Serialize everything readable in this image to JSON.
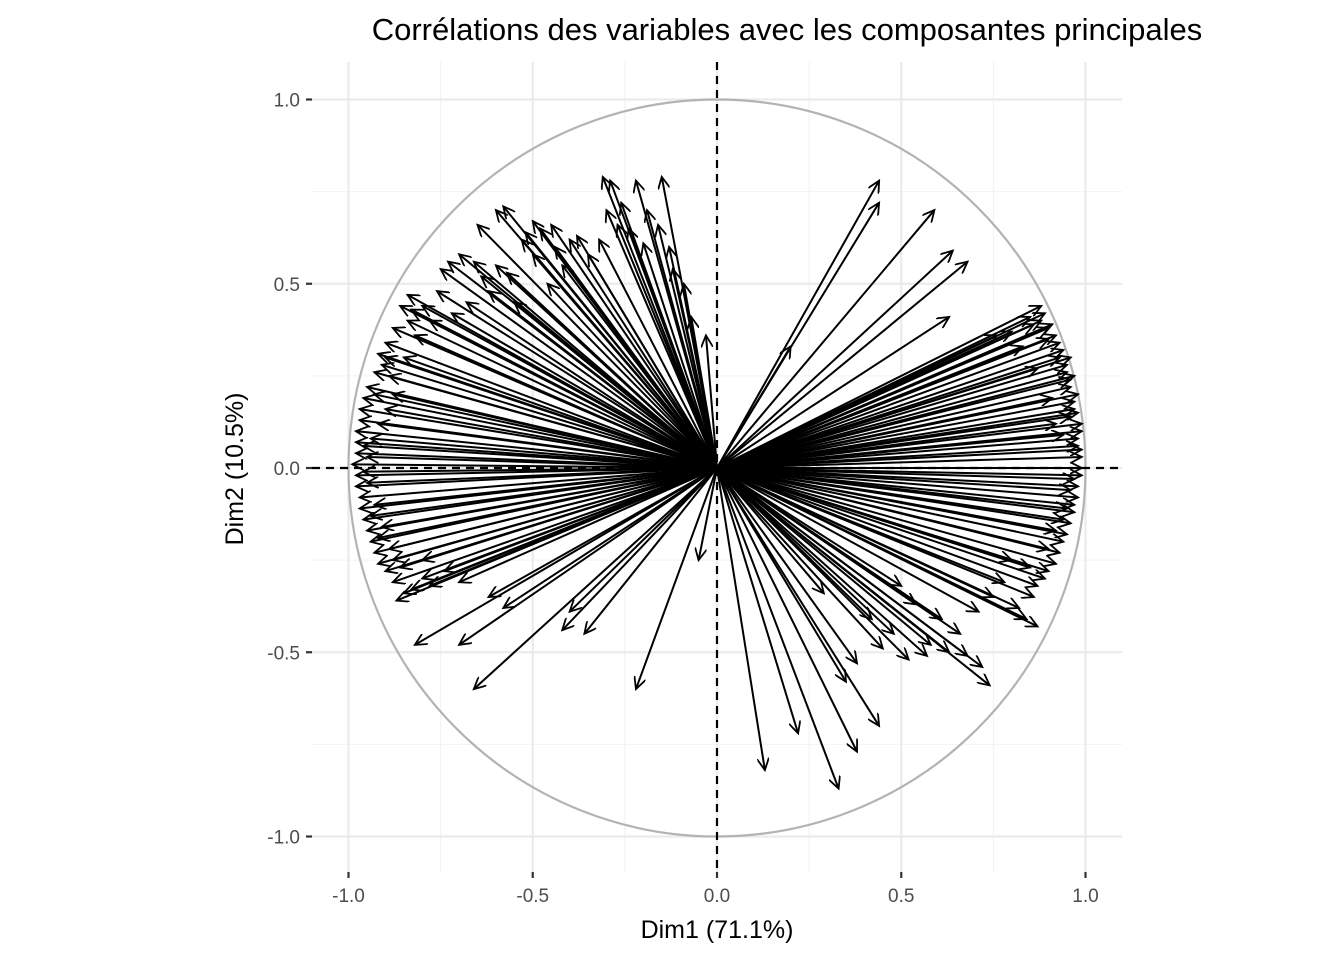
{
  "chart_data": {
    "type": "scatter",
    "subtype": "pca-variable-correlation-circle",
    "title": "Corrélations des variables avec les composantes principales",
    "xlabel": "Dim1 (71.1%)",
    "ylabel": "Dim2 (10.5%)",
    "xlim": [
      -1.0,
      1.0
    ],
    "ylim": [
      -1.0,
      1.0
    ],
    "x_ticks": [
      "-1.0",
      "-0.5",
      "0.0",
      "0.5",
      "1.0"
    ],
    "y_ticks": [
      "1.0",
      "0.5",
      "0.0",
      "-0.5",
      "-1.0"
    ],
    "grid": true,
    "unit_circle": true,
    "reference_lines": {
      "x": 0.0,
      "y": 0.0,
      "style": "dashed"
    },
    "arrow_color": "#000000",
    "circle_color": "#b3b3b3",
    "vectors": [
      [
        0.44,
        0.78
      ],
      [
        0.44,
        0.72
      ],
      [
        0.59,
        0.7
      ],
      [
        0.64,
        0.59
      ],
      [
        0.68,
        0.56
      ],
      [
        0.63,
        0.41
      ],
      [
        0.2,
        0.33
      ],
      [
        0.88,
        0.44
      ],
      [
        0.85,
        0.41
      ],
      [
        0.86,
        0.39
      ],
      [
        0.89,
        0.42
      ],
      [
        0.9,
        0.38
      ],
      [
        0.92,
        0.36
      ],
      [
        0.94,
        0.32
      ],
      [
        0.96,
        0.3
      ],
      [
        0.93,
        0.34
      ],
      [
        0.88,
        0.4
      ],
      [
        0.91,
        0.39
      ],
      [
        0.95,
        0.28
      ],
      [
        0.97,
        0.25
      ],
      [
        0.96,
        0.22
      ],
      [
        0.98,
        0.2
      ],
      [
        0.97,
        0.18
      ],
      [
        0.98,
        0.15
      ],
      [
        0.99,
        0.12
      ],
      [
        0.99,
        0.1
      ],
      [
        0.98,
        0.08
      ],
      [
        0.99,
        0.05
      ],
      [
        0.99,
        0.03
      ],
      [
        0.99,
        0.0
      ],
      [
        0.99,
        -0.02
      ],
      [
        0.98,
        -0.05
      ],
      [
        0.98,
        -0.08
      ],
      [
        0.97,
        -0.1
      ],
      [
        0.97,
        -0.12
      ],
      [
        0.96,
        -0.15
      ],
      [
        0.95,
        -0.18
      ],
      [
        0.94,
        -0.2
      ],
      [
        0.93,
        -0.23
      ],
      [
        0.92,
        -0.26
      ],
      [
        0.9,
        -0.28
      ],
      [
        0.89,
        -0.3
      ],
      [
        0.87,
        -0.32
      ],
      [
        0.86,
        -0.35
      ],
      [
        0.82,
        -0.38
      ],
      [
        0.87,
        -0.43
      ],
      [
        0.84,
        -0.41
      ],
      [
        0.75,
        -0.35
      ],
      [
        0.71,
        -0.39
      ],
      [
        0.68,
        -0.51
      ],
      [
        0.74,
        -0.59
      ],
      [
        0.72,
        -0.54
      ],
      [
        0.66,
        -0.45
      ],
      [
        0.61,
        -0.41
      ],
      [
        0.54,
        -0.37
      ],
      [
        0.5,
        -0.32
      ],
      [
        0.52,
        -0.52
      ],
      [
        0.57,
        -0.51
      ],
      [
        0.45,
        -0.49
      ],
      [
        0.38,
        -0.53
      ],
      [
        0.35,
        -0.58
      ],
      [
        0.44,
        -0.7
      ],
      [
        0.38,
        -0.77
      ],
      [
        0.33,
        -0.87
      ],
      [
        0.22,
        -0.72
      ],
      [
        0.13,
        -0.82
      ],
      [
        0.29,
        -0.34
      ],
      [
        0.95,
        0.26
      ],
      [
        0.96,
        0.24
      ],
      [
        0.97,
        0.16
      ],
      [
        0.93,
        0.3
      ],
      [
        0.9,
        0.35
      ],
      [
        0.98,
        0.06
      ],
      [
        0.97,
        -0.03
      ],
      [
        0.96,
        -0.06
      ],
      [
        0.95,
        -0.11
      ],
      [
        0.94,
        -0.14
      ],
      [
        0.92,
        -0.17
      ],
      [
        0.9,
        -0.22
      ],
      [
        0.85,
        -0.27
      ],
      [
        0.78,
        -0.31
      ],
      [
        0.8,
        -0.25
      ],
      [
        0.92,
        0.12
      ],
      [
        0.94,
        0.09
      ],
      [
        0.96,
        0.14
      ],
      [
        0.91,
        0.19
      ],
      [
        0.87,
        0.27
      ],
      [
        0.83,
        0.33
      ],
      [
        0.8,
        0.37
      ],
      [
        0.76,
        0.36
      ],
      [
        0.58,
        -0.48
      ],
      [
        0.63,
        -0.5
      ],
      [
        0.48,
        -0.45
      ],
      [
        0.42,
        -0.41
      ],
      [
        -0.31,
        0.79
      ],
      [
        -0.29,
        0.78
      ],
      [
        -0.22,
        0.78
      ],
      [
        -0.15,
        0.79
      ],
      [
        -0.19,
        0.7
      ],
      [
        -0.13,
        0.6
      ],
      [
        -0.07,
        0.41
      ],
      [
        -0.03,
        0.36
      ],
      [
        -0.09,
        0.5
      ],
      [
        -0.24,
        0.65
      ],
      [
        -0.27,
        0.66
      ],
      [
        -0.32,
        0.62
      ],
      [
        -0.38,
        0.63
      ],
      [
        -0.4,
        0.62
      ],
      [
        -0.45,
        0.66
      ],
      [
        -0.48,
        0.65
      ],
      [
        -0.5,
        0.67
      ],
      [
        -0.52,
        0.64
      ],
      [
        -0.53,
        0.62
      ],
      [
        -0.58,
        0.71
      ],
      [
        -0.6,
        0.7
      ],
      [
        -0.65,
        0.66
      ],
      [
        -0.57,
        0.53
      ],
      [
        -0.6,
        0.55
      ],
      [
        -0.66,
        0.56
      ],
      [
        -0.7,
        0.58
      ],
      [
        -0.73,
        0.56
      ],
      [
        -0.75,
        0.54
      ],
      [
        -0.76,
        0.48
      ],
      [
        -0.84,
        0.47
      ],
      [
        -0.86,
        0.44
      ],
      [
        -0.83,
        0.43
      ],
      [
        -0.88,
        0.38
      ],
      [
        -0.9,
        0.34
      ],
      [
        -0.92,
        0.31
      ],
      [
        -0.91,
        0.28
      ],
      [
        -0.93,
        0.26
      ],
      [
        -0.95,
        0.22
      ],
      [
        -0.96,
        0.19
      ],
      [
        -0.97,
        0.16
      ],
      [
        -0.97,
        0.13
      ],
      [
        -0.98,
        0.1
      ],
      [
        -0.98,
        0.07
      ],
      [
        -0.98,
        0.04
      ],
      [
        -0.99,
        0.01
      ],
      [
        -0.98,
        -0.02
      ],
      [
        -0.98,
        -0.05
      ],
      [
        -0.97,
        -0.08
      ],
      [
        -0.97,
        -0.11
      ],
      [
        -0.96,
        -0.14
      ],
      [
        -0.95,
        -0.17
      ],
      [
        -0.94,
        -0.2
      ],
      [
        -0.93,
        -0.23
      ],
      [
        -0.92,
        -0.26
      ],
      [
        -0.9,
        -0.28
      ],
      [
        -0.88,
        -0.31
      ],
      [
        -0.85,
        -0.34
      ],
      [
        -0.87,
        -0.36
      ],
      [
        -0.83,
        -0.33
      ],
      [
        -0.8,
        -0.3
      ],
      [
        -0.78,
        -0.32
      ],
      [
        -0.7,
        -0.31
      ],
      [
        -0.62,
        -0.35
      ],
      [
        -0.58,
        -0.38
      ],
      [
        -0.82,
        -0.48
      ],
      [
        -0.7,
        -0.48
      ],
      [
        -0.66,
        -0.6
      ],
      [
        -0.42,
        -0.44
      ],
      [
        -0.36,
        -0.45
      ],
      [
        -0.4,
        -0.39
      ],
      [
        -0.22,
        -0.6
      ],
      [
        -0.05,
        -0.25
      ],
      [
        -0.35,
        0.58
      ],
      [
        -0.42,
        0.55
      ],
      [
        -0.46,
        0.5
      ],
      [
        -0.55,
        0.45
      ],
      [
        -0.62,
        0.48
      ],
      [
        -0.68,
        0.45
      ],
      [
        -0.72,
        0.42
      ],
      [
        -0.78,
        0.4
      ],
      [
        -0.82,
        0.36
      ],
      [
        -0.85,
        0.3
      ],
      [
        -0.89,
        0.25
      ],
      [
        -0.88,
        0.2
      ],
      [
        -0.9,
        0.16
      ],
      [
        -0.92,
        0.12
      ],
      [
        -0.94,
        0.08
      ],
      [
        -0.95,
        0.03
      ],
      [
        -0.95,
        -0.04
      ],
      [
        -0.93,
        -0.1
      ],
      [
        -0.91,
        -0.16
      ],
      [
        -0.89,
        -0.22
      ],
      [
        -0.86,
        -0.27
      ],
      [
        -0.8,
        -0.25
      ],
      [
        -0.74,
        -0.28
      ],
      [
        -0.26,
        0.72
      ],
      [
        -0.2,
        0.61
      ],
      [
        -0.12,
        0.54
      ],
      [
        -0.16,
        0.66
      ],
      [
        -0.3,
        0.7
      ],
      [
        -0.44,
        0.6
      ],
      [
        -0.5,
        0.58
      ],
      [
        -0.64,
        0.52
      ],
      [
        -0.8,
        0.44
      ],
      [
        -0.84,
        0.4
      ],
      [
        -0.9,
        0.3
      ],
      [
        -0.93,
        0.2
      ],
      [
        -0.96,
        0.06
      ],
      [
        -0.96,
        -0.01
      ],
      [
        -0.94,
        -0.13
      ],
      [
        -0.92,
        -0.19
      ],
      [
        -0.88,
        -0.25
      ]
    ]
  }
}
